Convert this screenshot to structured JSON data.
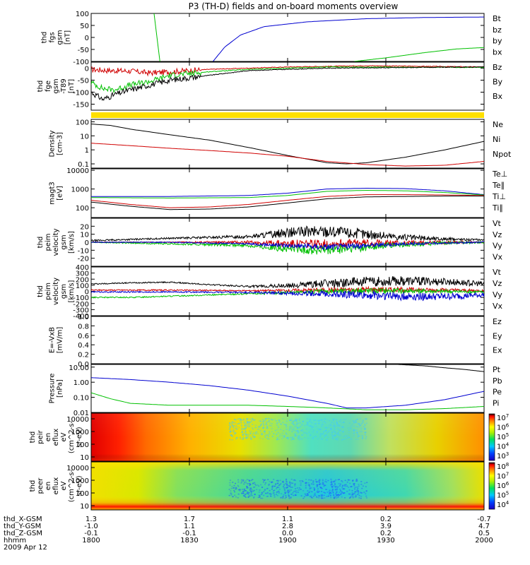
{
  "title": "P3 (TH-D) fields and on-board moments overview",
  "colors": {
    "black": "#000000",
    "red": "#d00000",
    "green": "#00c000",
    "blue": "#0000d0",
    "yellow": "#ffe000"
  },
  "chart_data": [
    {
      "type": "line",
      "id": "fgs",
      "ylabel": [
        "thd",
        "fgs",
        "gsm",
        "[nT]"
      ],
      "ylim": [
        -100,
        100
      ],
      "yticks": [
        100,
        50,
        0,
        -50,
        -100
      ],
      "legend": [
        {
          "label": "Bt",
          "color": "black"
        },
        {
          "label": "bz",
          "color": "red"
        },
        {
          "label": "by",
          "color": "green"
        },
        {
          "label": "bx",
          "color": "blue"
        }
      ],
      "series": [
        {
          "name": "by",
          "color": "green",
          "x": [
            0.16,
            0.175
          ],
          "y": [
            100,
            -100
          ]
        },
        {
          "name": "bx",
          "color": "blue",
          "x": [
            0.31,
            0.34,
            0.38,
            0.44,
            0.55,
            0.7,
            0.85,
            1.0
          ],
          "y": [
            -100,
            -40,
            10,
            45,
            65,
            78,
            83,
            85
          ]
        },
        {
          "name": "by",
          "color": "green",
          "x": [
            0.67,
            0.75,
            0.85,
            0.93,
            1.0
          ],
          "y": [
            -100,
            -85,
            -63,
            -48,
            -42
          ]
        }
      ]
    },
    {
      "type": "line",
      "id": "fge",
      "ylabel": [
        "thd",
        "fge",
        "gsm",
        "-T89",
        "[nT]"
      ],
      "ylim": [
        -175,
        25
      ],
      "yticks": [
        0,
        -50,
        -100,
        -150
      ],
      "legend": [
        {
          "label": "Bz",
          "color": "red"
        },
        {
          "label": "By",
          "color": "green"
        },
        {
          "label": "Bx",
          "color": "black"
        }
      ],
      "series": [
        {
          "name": "Bz",
          "color": "red",
          "x": [
            0,
            0.05,
            0.1,
            0.15,
            0.2,
            0.3,
            0.5,
            0.7,
            1.0
          ],
          "y": [
            -5,
            -10,
            -12,
            -20,
            -15,
            -5,
            5,
            10,
            5
          ]
        },
        {
          "name": "By",
          "color": "green",
          "x": [
            0,
            0.03,
            0.06,
            0.1,
            0.15,
            0.2,
            0.3,
            0.4,
            0.6,
            1.0
          ],
          "y": [
            -60,
            -85,
            -90,
            -70,
            -55,
            -30,
            -15,
            -5,
            5,
            3
          ]
        },
        {
          "name": "Bx",
          "color": "black",
          "x": [
            0,
            0.03,
            0.06,
            0.1,
            0.15,
            0.2,
            0.25,
            0.3,
            0.4,
            0.6,
            1.0
          ],
          "y": [
            -100,
            -130,
            -110,
            -90,
            -70,
            -50,
            -40,
            -30,
            -10,
            0,
            5
          ]
        }
      ]
    },
    {
      "type": "bar",
      "id": "mode",
      "ylabel": [],
      "color": "yellow"
    },
    {
      "type": "line",
      "id": "density",
      "ylabel": [
        "Density",
        "[cm-3]"
      ],
      "scale": "log",
      "ylim": [
        0.05,
        150
      ],
      "yticks": [
        "100",
        "10",
        "1",
        "0.1"
      ],
      "legend": [
        {
          "label": "Ne",
          "color": "red"
        },
        {
          "label": "Ni",
          "color": "black"
        },
        {
          "label": "Npot",
          "color": "blue"
        }
      ],
      "series": [
        {
          "name": "Ni",
          "color": "black",
          "x": [
            0,
            0.05,
            0.1,
            0.2,
            0.3,
            0.4,
            0.5,
            0.6,
            0.65,
            0.7,
            0.8,
            0.9,
            1.0
          ],
          "y": [
            70,
            55,
            30,
            12,
            5,
            1.5,
            0.4,
            0.12,
            0.1,
            0.12,
            0.3,
            1,
            4
          ]
        },
        {
          "name": "Ne",
          "color": "red",
          "x": [
            0,
            0.1,
            0.2,
            0.3,
            0.4,
            0.5,
            0.6,
            0.7,
            0.8,
            0.9,
            1.0
          ],
          "y": [
            3,
            2,
            1.3,
            0.9,
            0.6,
            0.35,
            0.15,
            0.09,
            0.07,
            0.08,
            0.15
          ]
        }
      ]
    },
    {
      "type": "line",
      "id": "magt3",
      "ylabel": [
        "magt3",
        "[eV]"
      ],
      "scale": "log",
      "ylim": [
        30,
        12000
      ],
      "yticks": [
        "10000",
        "1000",
        "100"
      ],
      "legend": [
        {
          "label": "Te⊥",
          "color": "red"
        },
        {
          "label": "Te∥",
          "color": "black"
        },
        {
          "label": "Ti⊥",
          "color": "blue"
        },
        {
          "label": "Ti∥",
          "color": "green"
        }
      ],
      "series": [
        {
          "name": "Ti⊥",
          "color": "blue",
          "x": [
            0,
            0.2,
            0.4,
            0.5,
            0.6,
            0.7,
            0.8,
            0.9,
            1.0
          ],
          "y": [
            400,
            400,
            450,
            600,
            1000,
            1100,
            1050,
            800,
            500
          ]
        },
        {
          "name": "Ti∥",
          "color": "green",
          "x": [
            0,
            0.2,
            0.4,
            0.5,
            0.6,
            0.7,
            0.8,
            0.9,
            1.0
          ],
          "y": [
            350,
            330,
            350,
            450,
            750,
            850,
            800,
            650,
            480
          ]
        },
        {
          "name": "Te⊥",
          "color": "red",
          "x": [
            0,
            0.1,
            0.2,
            0.3,
            0.4,
            0.5,
            0.6,
            0.7,
            0.8,
            0.9,
            1.0
          ],
          "y": [
            250,
            150,
            100,
            110,
            150,
            250,
            400,
            500,
            500,
            480,
            450
          ]
        },
        {
          "name": "Te∥",
          "color": "black",
          "x": [
            0,
            0.1,
            0.2,
            0.3,
            0.4,
            0.5,
            0.6,
            0.7,
            0.8,
            0.9,
            1.0
          ],
          "y": [
            200,
            120,
            80,
            85,
            110,
            180,
            300,
            380,
            400,
            420,
            420
          ]
        }
      ]
    },
    {
      "type": "line",
      "id": "vel_e",
      "ylabel": [
        "thd",
        "peim",
        "velocity",
        "gsm",
        "[km/s]"
      ],
      "ylim": [
        -30,
        30
      ],
      "yticks": [
        20,
        10,
        0,
        -10,
        -20
      ],
      "legend": [
        {
          "label": "Vt",
          "color": "black"
        },
        {
          "label": "Vz",
          "color": "red"
        },
        {
          "label": "Vy",
          "color": "green"
        },
        {
          "label": "Vx",
          "color": "blue"
        }
      ],
      "series": [
        {
          "name": "Vt",
          "color": "black",
          "x": [
            0,
            0.2,
            0.4,
            0.5,
            0.6,
            0.7,
            0.8,
            0.9,
            1.0
          ],
          "y": [
            2,
            5,
            7,
            12,
            14,
            10,
            6,
            4,
            3
          ],
          "noise": [
            1,
            1,
            2,
            6,
            8,
            6,
            4,
            2,
            1
          ]
        },
        {
          "name": "Vz",
          "color": "red",
          "x": [
            0,
            0.2,
            0.4,
            0.5,
            0.6,
            0.7,
            0.8,
            0.9,
            1.0
          ],
          "y": [
            0,
            0,
            0,
            -2,
            -2,
            -1,
            -1,
            0,
            0
          ],
          "noise": [
            0.5,
            0.5,
            2,
            5,
            6,
            5,
            3,
            2,
            1
          ]
        },
        {
          "name": "Vy",
          "color": "green",
          "x": [
            0,
            0.2,
            0.4,
            0.5,
            0.6,
            0.7,
            0.8,
            0.9,
            1.0
          ],
          "y": [
            0,
            -2,
            -4,
            -8,
            -10,
            -6,
            -3,
            -1,
            0
          ],
          "noise": [
            0.5,
            1,
            2,
            5,
            7,
            5,
            3,
            2,
            1
          ]
        },
        {
          "name": "Vx",
          "color": "blue",
          "x": [
            0,
            0.2,
            0.4,
            0.5,
            0.6,
            0.7,
            0.8,
            0.9,
            1.0
          ],
          "y": [
            0,
            0,
            -2,
            -4,
            -6,
            -4,
            -2,
            -1,
            0
          ],
          "noise": [
            0.5,
            0.5,
            1,
            3,
            4,
            3,
            2,
            1,
            1
          ]
        }
      ]
    },
    {
      "type": "line",
      "id": "vel_i",
      "ylabel": [
        "thd",
        "peim",
        "velocity",
        "gsm",
        "[km/s]"
      ],
      "ylim": [
        -400,
        400
      ],
      "yticks": [
        400,
        300,
        200,
        100,
        0,
        -100,
        -200,
        -300,
        -400
      ],
      "legend": [
        {
          "label": "Vt",
          "color": "black"
        },
        {
          "label": "Vz",
          "color": "red"
        },
        {
          "label": "Vy",
          "color": "green"
        },
        {
          "label": "Vx",
          "color": "blue"
        }
      ],
      "series": [
        {
          "name": "Vt",
          "color": "black",
          "x": [
            0,
            0.1,
            0.2,
            0.3,
            0.4,
            0.5,
            0.6,
            0.7,
            0.8,
            0.9,
            1.0
          ],
          "y": [
            120,
            140,
            150,
            110,
            80,
            90,
            130,
            160,
            170,
            160,
            120
          ],
          "noise": [
            10,
            10,
            10,
            10,
            15,
            40,
            70,
            80,
            80,
            60,
            40
          ]
        },
        {
          "name": "Vz",
          "color": "red",
          "x": [
            0,
            0.2,
            0.4,
            0.5,
            0.6,
            0.7,
            0.8,
            0.9,
            1.0
          ],
          "y": [
            20,
            20,
            10,
            15,
            20,
            30,
            25,
            20,
            10
          ],
          "noise": [
            10,
            10,
            10,
            25,
            40,
            50,
            40,
            30,
            20
          ]
        },
        {
          "name": "Vy",
          "color": "green",
          "x": [
            0,
            0.1,
            0.2,
            0.3,
            0.4,
            0.5,
            0.6,
            0.7,
            0.8,
            0.9,
            1.0
          ],
          "y": [
            -100,
            -100,
            -80,
            -60,
            -40,
            -20,
            0,
            10,
            10,
            0,
            -10
          ],
          "noise": [
            10,
            10,
            10,
            10,
            15,
            30,
            40,
            50,
            40,
            30,
            20
          ]
        },
        {
          "name": "Vx",
          "color": "blue",
          "x": [
            0,
            0.2,
            0.4,
            0.5,
            0.6,
            0.7,
            0.8,
            0.9,
            1.0
          ],
          "y": [
            -10,
            -10,
            -20,
            -30,
            -40,
            -60,
            -80,
            -90,
            -60
          ],
          "noise": [
            10,
            10,
            15,
            30,
            50,
            70,
            70,
            60,
            40
          ]
        }
      ]
    },
    {
      "type": "line",
      "id": "efield",
      "ylabel": [
        "E=-VxB",
        "[mV/m]"
      ],
      "ylim": [
        0,
        1
      ],
      "yticks": [
        "1.0",
        "0.8",
        "0.6",
        "0.4",
        "0.2",
        "0.0"
      ],
      "legend": [
        {
          "label": "Ez",
          "color": "red"
        },
        {
          "label": "Ey",
          "color": "green"
        },
        {
          "label": "Ex",
          "color": "blue"
        }
      ],
      "series": []
    },
    {
      "type": "line",
      "id": "pressure",
      "ylabel": [
        "Pressure",
        "[nPa]"
      ],
      "scale": "log",
      "ylim": [
        0.01,
        15
      ],
      "yticks": [
        "10.00",
        "1.00",
        "0.10",
        "0.01"
      ],
      "legend": [
        {
          "label": "Pt",
          "color": "black"
        },
        {
          "label": "Pb",
          "color": "red"
        },
        {
          "label": "Pe",
          "color": "green"
        },
        {
          "label": "Pi",
          "color": "blue"
        }
      ],
      "series": [
        {
          "name": "Pt",
          "color": "black",
          "x": [
            0.78,
            0.85,
            0.9,
            0.95,
            1.0
          ],
          "y": [
            15,
            12,
            9,
            7,
            5
          ]
        },
        {
          "name": "Pi",
          "color": "blue",
          "x": [
            0,
            0.1,
            0.2,
            0.3,
            0.4,
            0.5,
            0.6,
            0.65,
            0.7,
            0.8,
            0.9,
            1.0
          ],
          "y": [
            2,
            1.5,
            1,
            0.6,
            0.3,
            0.12,
            0.04,
            0.02,
            0.02,
            0.03,
            0.07,
            0.25
          ]
        },
        {
          "name": "Pe",
          "color": "green",
          "x": [
            0,
            0.05,
            0.1,
            0.2,
            0.3,
            0.4,
            0.5,
            0.6,
            0.7,
            0.8,
            0.9,
            1.0
          ],
          "y": [
            0.2,
            0.08,
            0.04,
            0.03,
            0.03,
            0.03,
            0.025,
            0.02,
            0.015,
            0.015,
            0.018,
            0.025
          ]
        }
      ]
    },
    {
      "type": "heatmap",
      "id": "ion_spec",
      "ylabel": [
        "thd",
        "peir",
        "en",
        "eflux",
        "eV",
        "(cm^2-s-",
        "sr-eV)"
      ],
      "yticks": [
        "10000",
        "1000",
        "100",
        "10"
      ],
      "colorbar": {
        "ticks": [
          "10^7",
          "10^6",
          "10^5",
          "10^4",
          "10^3"
        ]
      }
    },
    {
      "type": "heatmap",
      "id": "elec_spec",
      "ylabel": [
        "thd",
        "peer",
        "en",
        "eflux",
        "eV",
        "(cm^2-s-",
        "sr-eV)"
      ],
      "yticks": [
        "10000",
        "1000",
        "100",
        "10"
      ],
      "colorbar": {
        "ticks": [
          "10^8",
          "10^7",
          "10^6",
          "10^5",
          "10^4"
        ]
      }
    }
  ],
  "axis": {
    "rows": [
      {
        "label": "thd_X-GSM",
        "values": [
          "1.3",
          "1.7",
          "1.1",
          "0.2",
          "-0.7"
        ]
      },
      {
        "label": "thd_Y-GSM",
        "values": [
          "-1.0",
          "1.1",
          "2.8",
          "3.9",
          "4.7"
        ]
      },
      {
        "label": "thd_Z-GSM",
        "values": [
          "-0.1",
          "-0.1",
          "0.0",
          "0.2",
          "0.5"
        ]
      },
      {
        "label": "hhmm",
        "values": [
          "1800",
          "1830",
          "1900",
          "1930",
          "2000"
        ]
      }
    ],
    "date": "2009 Apr 12"
  }
}
